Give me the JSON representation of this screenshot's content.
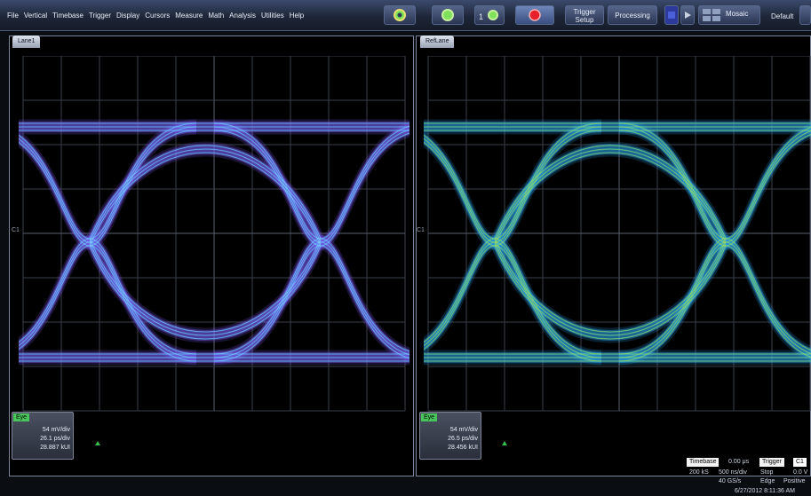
{
  "menu": [
    "File",
    "Vertical",
    "Timebase",
    "Trigger",
    "Display",
    "Cursors",
    "Measure",
    "Math",
    "Analysis",
    "Utilities",
    "Help"
  ],
  "toolbar": {
    "trigger_setup_line1": "Trigger",
    "trigger_setup_line2": "Setup",
    "processing": "Processing",
    "mosaic": "Mosaic",
    "default": "Default",
    "one_badge": "1"
  },
  "left_panel": {
    "tab": "Lane1",
    "desc": {
      "tag": "Eye",
      "v1": "54 mV/div",
      "v2": "26.1 ps/div",
      "v3": "28.887 kUI"
    },
    "marker": "C1"
  },
  "right_panel": {
    "tab": "RefLane",
    "desc": {
      "tag": "Eye",
      "v1": "54 mV/div",
      "v2": "26.5 ps/div",
      "v3": "28.456 kUI"
    },
    "marker": "C1"
  },
  "status": {
    "timebase_label": "Timebase",
    "timebase_value": "0.00 μs",
    "trigger_label": "Trigger",
    "trigger_value": "C1",
    "row2_a": "200 kS",
    "row2_b": "500 ns/div",
    "row2_c": "Stop",
    "row2_d": "0.0 V",
    "row3_a": "40 GS/s",
    "row3_b": "Edge",
    "row3_c": "Positive",
    "datetime": "6/27/2012 8:11:36 AM"
  },
  "colors": {
    "trace_left": "#7a5cf0",
    "trace_left_core": "#39a8f0",
    "trace_right": "#2a9be0",
    "trace_right_hot": "#e8d81c",
    "tag": "#49c45a"
  }
}
